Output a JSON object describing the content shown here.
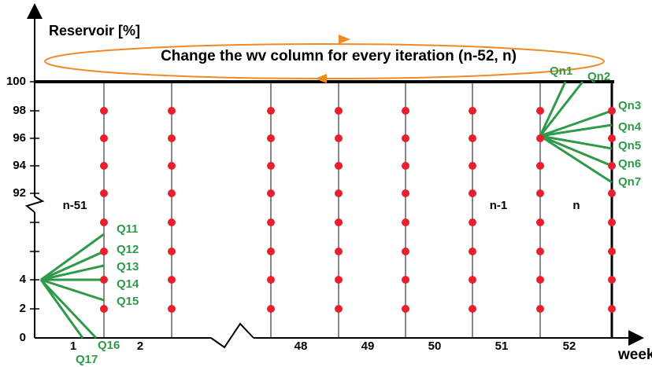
{
  "y_axis_label": "Reservoir [%]",
  "x_axis_label": "week",
  "banner": "Change the wv column for every iteration (n-52, n)",
  "y_ticks": [
    "100",
    "98",
    "96",
    "94",
    "92",
    "4",
    "2",
    "0"
  ],
  "x_ticks": [
    "1",
    "2",
    "48",
    "49",
    "50",
    "51",
    "52"
  ],
  "column_labels": [
    "n-51",
    "n-1",
    "n"
  ],
  "left_flows": [
    "Q11",
    "Q12",
    "Q13",
    "Q14",
    "Q15",
    "Q16",
    "Q17"
  ],
  "right_flows": [
    "Qn1",
    "Qn2",
    "Qn3",
    "Qn4",
    "Qn5",
    "Qn6",
    "Qn7"
  ]
}
